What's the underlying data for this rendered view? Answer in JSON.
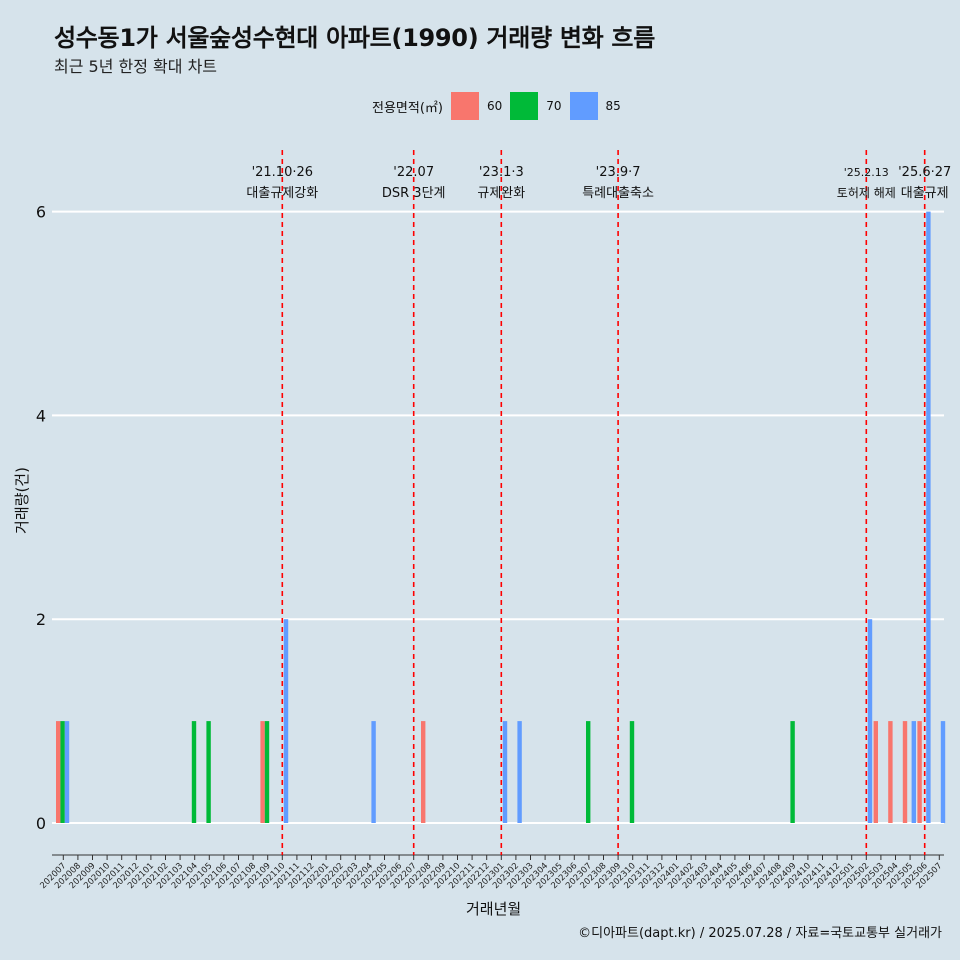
{
  "title": "성수동1가 서울숲성수현대 아파트(1990) 거래량 변화 흐름",
  "subtitle": "최근 5년 한정 확대 차트",
  "caption": "©디아파트(dapt.kr) / 2025.07.28 / 자료=국토교통부 실거래가",
  "colors": {
    "background": "#d6e3eb",
    "grid": "#ffffff",
    "event_line": "#ff0000",
    "s60": "#f8766d",
    "s70": "#00ba38",
    "s85": "#619cff"
  },
  "chart_data": {
    "type": "bar",
    "xlabel": "거래년월",
    "ylabel": "거래량(건)",
    "ylim": [
      0,
      6
    ],
    "yticks": [
      0,
      2,
      4,
      6
    ],
    "legend_title": "전용면적(㎡)",
    "legend_position": "top",
    "grid": "horizontal",
    "categories": [
      "202007",
      "202008",
      "202009",
      "202010",
      "202011",
      "202012",
      "202101",
      "202102",
      "202103",
      "202104",
      "202105",
      "202106",
      "202107",
      "202108",
      "202109",
      "202110",
      "202111",
      "202112",
      "202201",
      "202202",
      "202203",
      "202204",
      "202205",
      "202206",
      "202207",
      "202208",
      "202209",
      "202210",
      "202211",
      "202212",
      "202301",
      "202302",
      "202303",
      "202304",
      "202305",
      "202306",
      "202307",
      "202308",
      "202309",
      "202310",
      "202311",
      "202312",
      "202401",
      "202402",
      "202403",
      "202404",
      "202405",
      "202406",
      "202407",
      "202408",
      "202409",
      "202410",
      "202411",
      "202412",
      "202501",
      "202502",
      "202503",
      "202504",
      "202505",
      "202506",
      "202507"
    ],
    "series": [
      {
        "name": "60",
        "values": [
          1,
          0,
          0,
          0,
          0,
          0,
          0,
          0,
          0,
          0,
          0,
          0,
          0,
          0,
          1,
          0,
          0,
          0,
          0,
          0,
          0,
          0,
          0,
          0,
          0,
          1,
          0,
          0,
          0,
          0,
          0,
          0,
          0,
          0,
          0,
          0,
          0,
          0,
          0,
          0,
          0,
          0,
          0,
          0,
          0,
          0,
          0,
          0,
          0,
          0,
          0,
          0,
          0,
          0,
          0,
          0,
          1,
          1,
          1,
          1,
          0
        ]
      },
      {
        "name": "70",
        "values": [
          1,
          0,
          0,
          0,
          0,
          0,
          0,
          0,
          0,
          1,
          1,
          0,
          0,
          0,
          1,
          0,
          0,
          0,
          0,
          0,
          0,
          0,
          0,
          0,
          0,
          0,
          0,
          0,
          0,
          0,
          0,
          0,
          0,
          0,
          0,
          0,
          1,
          0,
          0,
          1,
          0,
          0,
          0,
          0,
          0,
          0,
          0,
          0,
          0,
          0,
          1,
          0,
          0,
          0,
          0,
          0,
          0,
          0,
          0,
          0,
          0
        ]
      },
      {
        "name": "85",
        "values": [
          1,
          0,
          0,
          0,
          0,
          0,
          0,
          0,
          0,
          0,
          0,
          0,
          0,
          0,
          0,
          2,
          0,
          0,
          0,
          0,
          0,
          1,
          0,
          0,
          0,
          0,
          0,
          0,
          0,
          0,
          1,
          1,
          0,
          0,
          0,
          0,
          0,
          0,
          0,
          0,
          0,
          0,
          0,
          0,
          0,
          0,
          0,
          0,
          0,
          0,
          0,
          0,
          0,
          0,
          0,
          2,
          0,
          0,
          1,
          6,
          1
        ]
      }
    ],
    "events": [
      {
        "at": 15.0,
        "date": "'21.10·26",
        "label": "대출규제강화"
      },
      {
        "at": 24.0,
        "date": "'22.07",
        "label": "DSR 3단계"
      },
      {
        "at": 30.0,
        "date": "'23.1·3",
        "label": "규제완화"
      },
      {
        "at": 38.0,
        "date": "'23.9·7",
        "label": "특례대출축소"
      },
      {
        "at": 55.0,
        "date": "'25.2.13",
        "label": "토허제 해제"
      },
      {
        "at": 59.0,
        "date": "'25.6·27",
        "label": "대출규제"
      }
    ]
  }
}
